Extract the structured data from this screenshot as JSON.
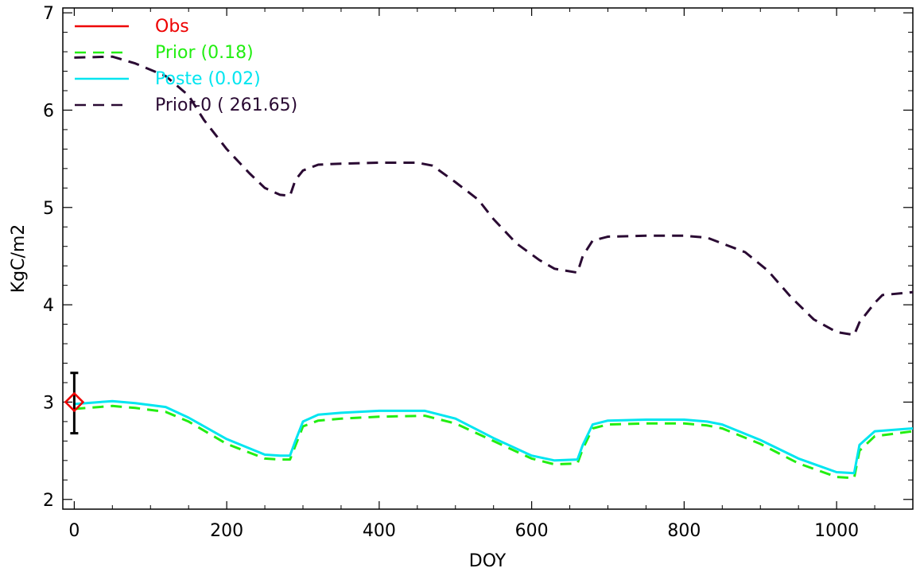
{
  "chart_data": {
    "type": "line",
    "xlabel": "DOY",
    "ylabel": "KgC/m2",
    "xlim": [
      -15,
      1100
    ],
    "ylim": [
      1.9,
      7.05
    ],
    "xticks": [
      0,
      200,
      400,
      600,
      800,
      1000
    ],
    "yticks": [
      2,
      3,
      4,
      5,
      6,
      7
    ],
    "grid": false,
    "legend_position": "top-left",
    "series": [
      {
        "name": "Prior-0 ( 261.65)",
        "color": "#2a0a33",
        "style": "dashed",
        "x": [
          0,
          50,
          80,
          120,
          150,
          170,
          200,
          230,
          250,
          270,
          283,
          290,
          300,
          320,
          350,
          400,
          450,
          470,
          500,
          530,
          550,
          580,
          610,
          630,
          660,
          667,
          680,
          700,
          750,
          800,
          830,
          850,
          880,
          910,
          940,
          970,
          1000,
          1023,
          1030,
          1050,
          1060,
          1100
        ],
        "y": [
          6.54,
          6.55,
          6.48,
          6.35,
          6.15,
          5.9,
          5.6,
          5.35,
          5.2,
          5.13,
          5.12,
          5.28,
          5.38,
          5.44,
          5.45,
          5.46,
          5.46,
          5.43,
          5.26,
          5.08,
          4.88,
          4.63,
          4.46,
          4.37,
          4.33,
          4.5,
          4.66,
          4.7,
          4.71,
          4.71,
          4.69,
          4.63,
          4.54,
          4.35,
          4.08,
          3.85,
          3.72,
          3.69,
          3.82,
          4.02,
          4.1,
          4.13
        ]
      },
      {
        "name": "Prior (0.18)",
        "color": "#22ee11",
        "style": "dashed",
        "x": [
          0,
          50,
          80,
          120,
          150,
          200,
          250,
          270,
          283,
          290,
          300,
          320,
          350,
          400,
          460,
          500,
          550,
          600,
          630,
          660,
          667,
          680,
          700,
          750,
          800,
          830,
          850,
          900,
          950,
          1000,
          1023,
          1030,
          1050,
          1100
        ],
        "y": [
          2.93,
          2.96,
          2.94,
          2.9,
          2.8,
          2.57,
          2.42,
          2.41,
          2.41,
          2.55,
          2.75,
          2.81,
          2.83,
          2.85,
          2.86,
          2.78,
          2.6,
          2.42,
          2.36,
          2.37,
          2.52,
          2.73,
          2.77,
          2.78,
          2.78,
          2.76,
          2.73,
          2.57,
          2.37,
          2.23,
          2.22,
          2.5,
          2.65,
          2.7
        ]
      },
      {
        "name": "Poste (0.02)",
        "color": "#00e5f0",
        "style": "solid",
        "x": [
          0,
          50,
          80,
          120,
          150,
          200,
          250,
          270,
          283,
          290,
          300,
          320,
          350,
          400,
          460,
          500,
          550,
          600,
          630,
          660,
          667,
          680,
          700,
          750,
          800,
          830,
          850,
          900,
          950,
          1000,
          1023,
          1030,
          1050,
          1100
        ],
        "y": [
          2.98,
          3.01,
          2.99,
          2.95,
          2.84,
          2.62,
          2.46,
          2.45,
          2.45,
          2.6,
          2.8,
          2.87,
          2.89,
          2.91,
          2.91,
          2.83,
          2.63,
          2.45,
          2.4,
          2.41,
          2.56,
          2.77,
          2.81,
          2.82,
          2.82,
          2.8,
          2.77,
          2.61,
          2.42,
          2.28,
          2.27,
          2.56,
          2.7,
          2.73
        ]
      }
    ],
    "legend_only_series": [
      {
        "name": "Obs",
        "color": "#ee0000",
        "style": "solid"
      }
    ],
    "observations": [
      {
        "x": 0,
        "y": 3.0,
        "error_low": 2.68,
        "error_high": 3.3,
        "marker": "diamond",
        "marker_color": "#ee0000",
        "errorbar_color": "#000000"
      }
    ],
    "legend": [
      {
        "label": "Obs",
        "color": "#ee0000",
        "style": "solid",
        "text_color": "#ee0000"
      },
      {
        "label": "Prior (0.18)",
        "color": "#22ee11",
        "style": "dashed",
        "text_color": "#22ee11"
      },
      {
        "label": "Poste (0.02)",
        "color": "#00e5f0",
        "style": "solid",
        "text_color": "#00e5f0"
      },
      {
        "label": "Prior-0 ( 261.65)",
        "color": "#2a0a33",
        "style": "dashed",
        "text_color": "#2a0a33"
      }
    ]
  }
}
